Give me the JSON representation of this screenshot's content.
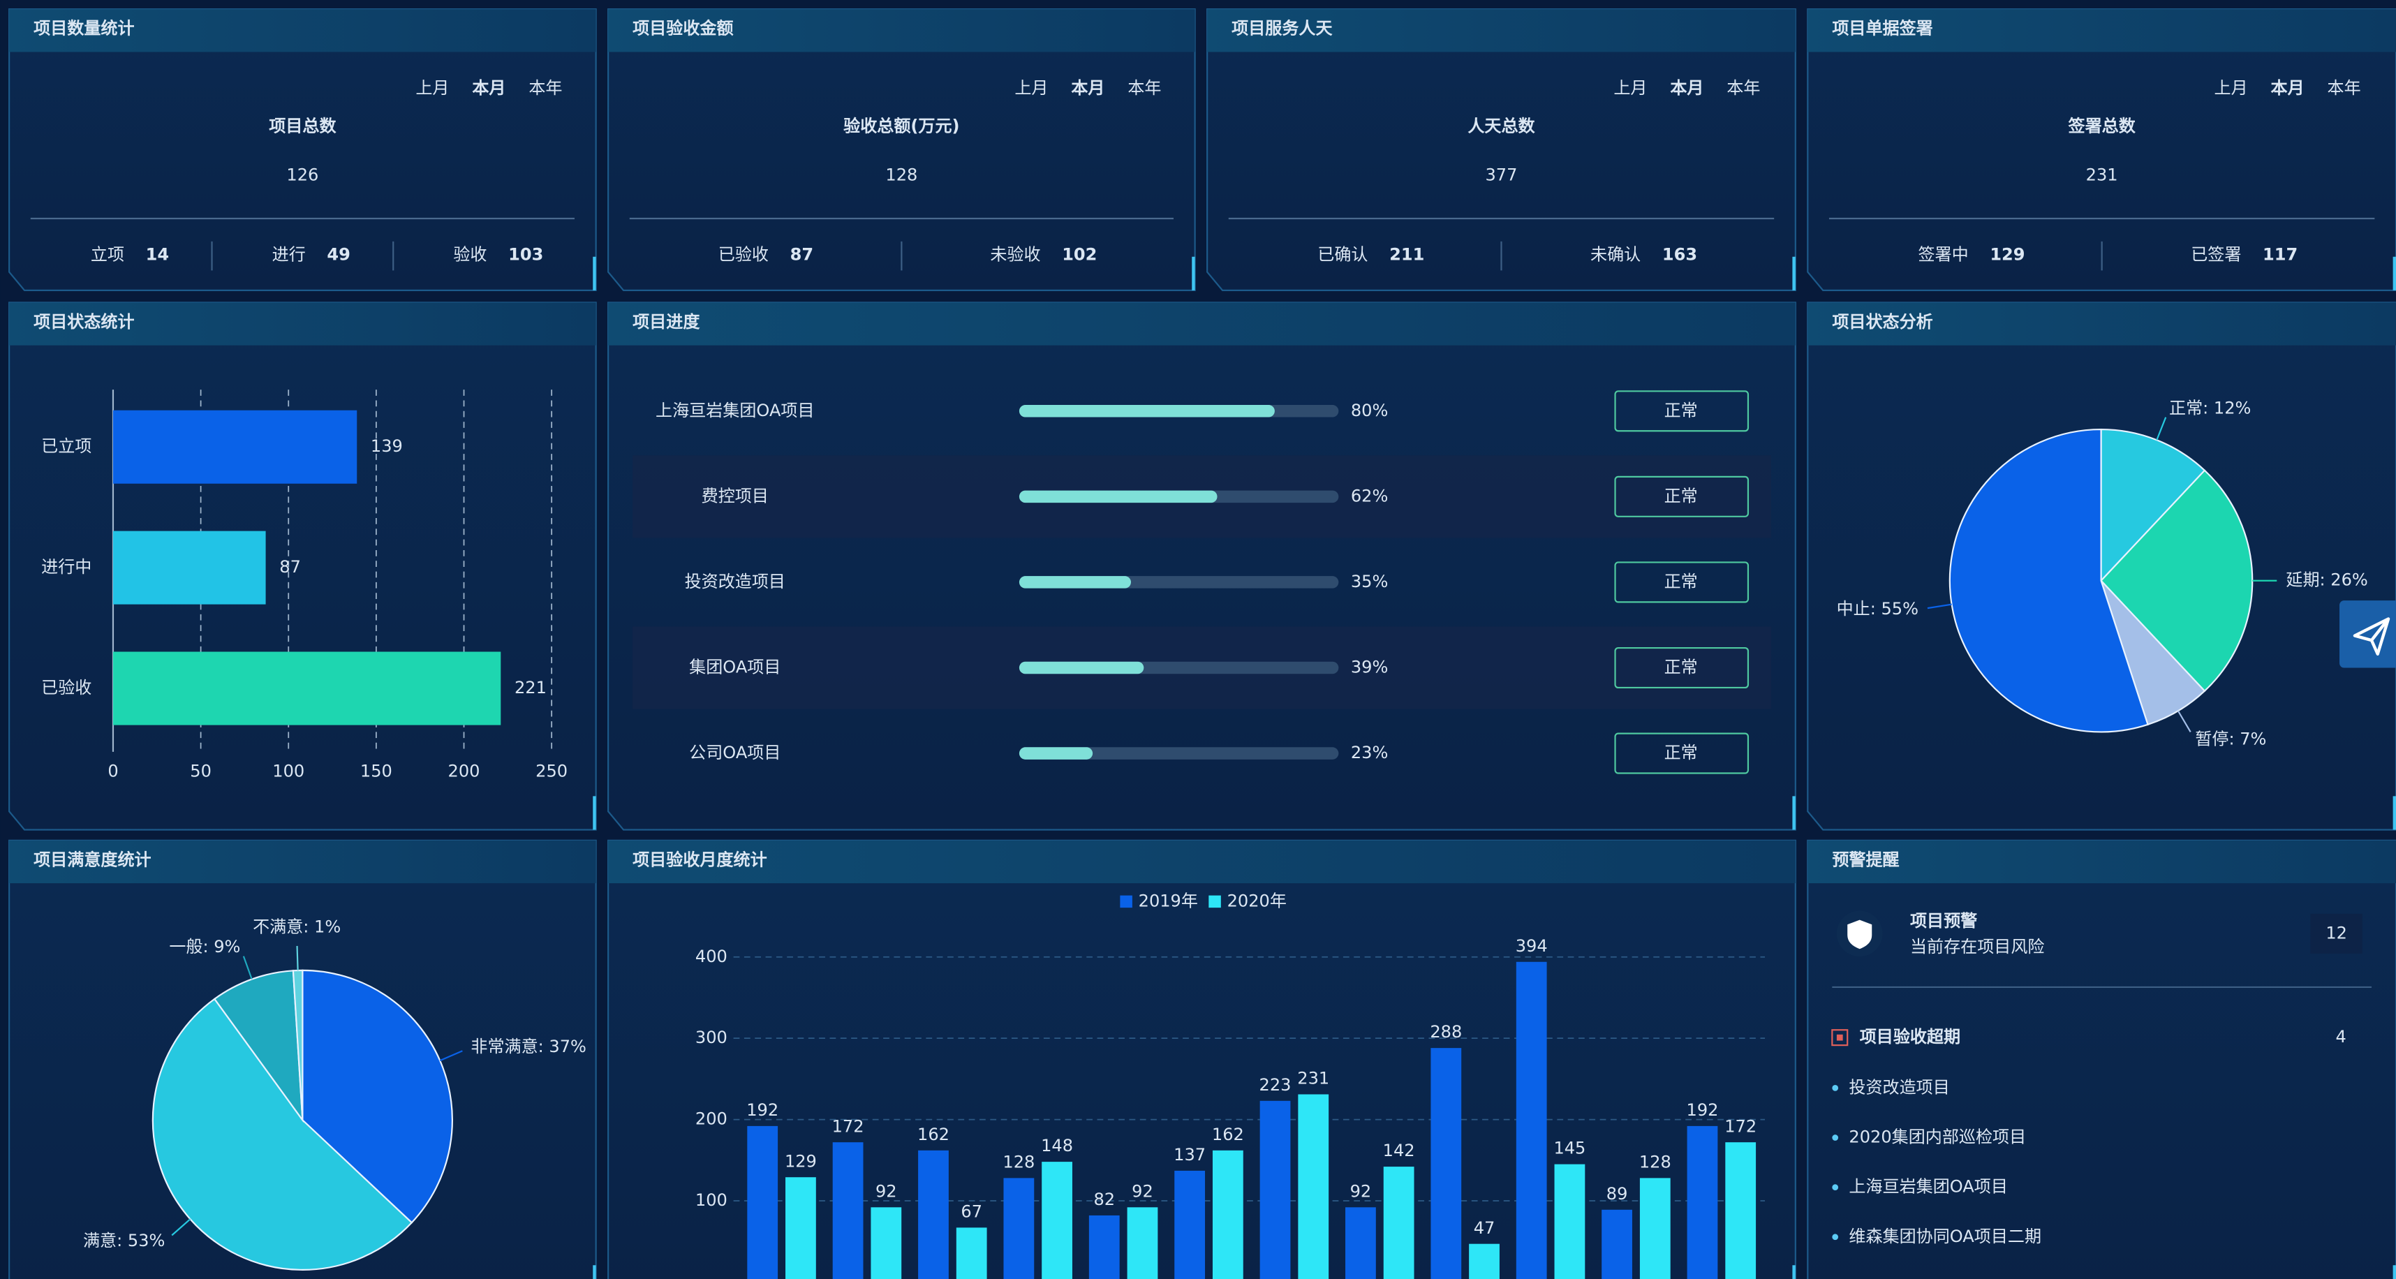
{
  "stat_cards": [
    {
      "title": "项目数量统计",
      "tabs": [
        "上月",
        "本月",
        "本年"
      ],
      "label": "项目总数",
      "total": 126,
      "items": [
        {
          "label": "立项",
          "value": 14
        },
        {
          "label": "进行",
          "value": 49
        },
        {
          "label": "验收",
          "value": 103
        }
      ]
    },
    {
      "title": "项目验收金额",
      "tabs": [
        "上月",
        "本月",
        "本年"
      ],
      "label": "验收总额(万元)",
      "total": 128,
      "items": [
        {
          "label": "已验收",
          "value": 87
        },
        {
          "label": "未验收",
          "value": 102
        }
      ]
    },
    {
      "title": "项目服务人天",
      "tabs": [
        "上月",
        "本月",
        "本年"
      ],
      "label": "人天总数",
      "total": 377,
      "items": [
        {
          "label": "已确认",
          "value": 211
        },
        {
          "label": "未确认",
          "value": 163
        }
      ]
    },
    {
      "title": "项目单据签署",
      "tabs": [
        "上月",
        "本月",
        "本年"
      ],
      "label": "签署总数",
      "total": 231,
      "items": [
        {
          "label": "签署中",
          "value": 129
        },
        {
          "label": "已签署",
          "value": 117
        }
      ]
    }
  ],
  "progress": {
    "title": "项目进度",
    "rows": [
      {
        "name": "上海亘岩集团OA项目",
        "percent": 80,
        "percent_label": "80%",
        "status": "正常"
      },
      {
        "name": "费控项目",
        "percent": 62,
        "percent_label": "62%",
        "status": "正常"
      },
      {
        "name": "投资改造项目",
        "percent": 35,
        "percent_label": "35%",
        "status": "正常"
      },
      {
        "name": "集团OA项目",
        "percent": 39,
        "percent_label": "39%",
        "status": "正常"
      },
      {
        "name": "公司OA项目",
        "percent": 23,
        "percent_label": "23%",
        "status": "正常"
      }
    ]
  },
  "warnings": {
    "title": "预警提醒",
    "alert": {
      "title": "项目预警",
      "subtitle": "当前存在项目风险",
      "count": 12
    },
    "section": {
      "title": "项目验收超期",
      "count": 4,
      "items": [
        "投资改造项目",
        "2020集团内部巡检项目",
        "上海亘岩集团OA项目",
        "维森集团协同OA项目二期"
      ]
    }
  },
  "chart_data": [
    {
      "type": "hbar",
      "title": "项目状态统计",
      "categories": [
        "已立项",
        "进行中",
        "已验收"
      ],
      "values": [
        139,
        87,
        221
      ],
      "colors": [
        "#0a62e8",
        "#22c3e6",
        "#1ed6b0"
      ],
      "xlim": [
        0,
        250
      ],
      "xticks": [
        0,
        50,
        100,
        150,
        200,
        250
      ],
      "grid": true
    },
    {
      "type": "pie",
      "title": "项目状态分析",
      "values": [
        12,
        26,
        7,
        55
      ],
      "value_labels": [
        "正常: 12%",
        "延期: 26%",
        "暂停: 7%",
        "中止: 55%"
      ],
      "colors": [
        "#26c9e0",
        "#1cd6b0",
        "#a4bfe8",
        "#0a62e8"
      ]
    },
    {
      "type": "pie",
      "title": "项目满意度统计",
      "values": [
        37,
        53,
        9,
        1
      ],
      "value_labels": [
        "非常满意: 37%",
        "满意: 53%",
        "一般: 9%",
        "不满意: 1%"
      ],
      "colors": [
        "#0a62e8",
        "#27c8e0",
        "#1fa9bf",
        "#5fd3e0"
      ]
    },
    {
      "type": "bar",
      "title": "项目验收月度统计",
      "categories": [
        null,
        null,
        null,
        null,
        null,
        null,
        null,
        null,
        null,
        null,
        null,
        null
      ],
      "series": [
        {
          "name": "2019年",
          "color": "#0a62e8",
          "values": [
            192,
            172,
            162,
            128,
            82,
            137,
            223,
            92,
            288,
            394,
            89,
            192
          ]
        },
        {
          "name": "2020年",
          "color": "#2ee6f7",
          "values": [
            129,
            92,
            67,
            148,
            92,
            162,
            231,
            142,
            47,
            145,
            128,
            172
          ]
        }
      ],
      "ylim": [
        0,
        440
      ],
      "yticks": [
        100,
        200,
        300,
        400
      ],
      "grid": true
    }
  ]
}
